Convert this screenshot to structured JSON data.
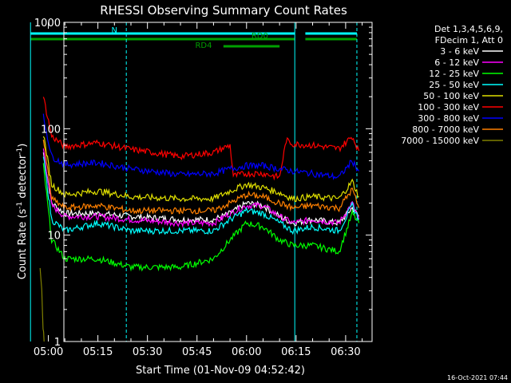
{
  "chart_data": {
    "type": "line",
    "title": "RHESSI Observing Summary Count Rates",
    "xlabel": "Start Time (01-Nov-09 04:52:42)",
    "ylabel_main": "Count Rate (s",
    "ylabel_sup1": "-1",
    "ylabel_mid": " detector",
    "ylabel_sup2": "-1",
    "ylabel_end": ")",
    "yscale": "log",
    "ylim": [
      1,
      1000
    ],
    "xlim_minutes": [
      4.7,
      98
    ],
    "y_ticks": [
      {
        "value": 1,
        "label": "1"
      },
      {
        "value": 10,
        "label": "10"
      },
      {
        "value": 100,
        "label": "100"
      },
      {
        "value": 1000,
        "label": "1000"
      }
    ],
    "x_ticks": [
      {
        "minutes": 0,
        "label": "05:00"
      },
      {
        "minutes": 15,
        "label": "05:15"
      },
      {
        "minutes": 30,
        "label": "05:30"
      },
      {
        "minutes": 45,
        "label": "05:45"
      },
      {
        "minutes": 60,
        "label": "06:00"
      },
      {
        "minutes": 75,
        "label": "06:15"
      },
      {
        "minutes": 90,
        "label": "06:30"
      }
    ],
    "legend_header": [
      "Det 1,3,4,5,6,9,",
      "FDecim 1, Att 0"
    ],
    "legend_placement": "right",
    "timestamp": "16-Oct-2021 07:44",
    "flags": [
      {
        "label": "N",
        "color": "#00ffff",
        "segments": [
          [
            -5.4,
            93.4
          ]
        ],
        "gap": [
          74.6,
          77.8
        ],
        "level": 0
      },
      {
        "label": "RD0",
        "color": "#00a000",
        "segments": [
          [
            -5.4,
            74.6
          ],
          [
            77.8,
            93.4
          ]
        ],
        "level": 1
      },
      {
        "label": "RD4",
        "color": "#00a000",
        "segments": [
          [
            53.0,
            70.0
          ]
        ],
        "level": 2
      }
    ],
    "night_boundaries_minutes": [
      -5.4,
      23.6,
      74.6,
      93.4
    ],
    "series": [
      {
        "name": "3 - 6 keV",
        "color": "#ffffff",
        "values": [
          [
            -1.5,
            60
          ],
          [
            1,
            20
          ],
          [
            5,
            16
          ],
          [
            15,
            16
          ],
          [
            25,
            15
          ],
          [
            40,
            14
          ],
          [
            50,
            14
          ],
          [
            55,
            16
          ],
          [
            60,
            20
          ],
          [
            65,
            19
          ],
          [
            70,
            15
          ],
          [
            74,
            13
          ],
          [
            80,
            14
          ],
          [
            88,
            13
          ],
          [
            92,
            18
          ],
          [
            94,
            15
          ]
        ]
      },
      {
        "name": "6 - 12 keV",
        "color": "#ff00ff",
        "values": [
          [
            -1.5,
            65
          ],
          [
            1,
            19
          ],
          [
            5,
            15
          ],
          [
            15,
            15
          ],
          [
            25,
            14
          ],
          [
            40,
            13
          ],
          [
            50,
            13
          ],
          [
            55,
            16
          ],
          [
            60,
            19
          ],
          [
            65,
            19
          ],
          [
            70,
            15
          ],
          [
            74,
            13
          ],
          [
            80,
            14
          ],
          [
            88,
            13
          ],
          [
            92,
            20
          ],
          [
            94,
            14
          ]
        ]
      },
      {
        "name": "12 - 25 keV",
        "color": "#00ff00",
        "values": [
          [
            -1.5,
            45
          ],
          [
            1,
            9
          ],
          [
            5,
            6
          ],
          [
            15,
            6
          ],
          [
            25,
            5
          ],
          [
            40,
            5
          ],
          [
            50,
            6
          ],
          [
            55,
            9
          ],
          [
            60,
            13
          ],
          [
            65,
            12
          ],
          [
            70,
            9
          ],
          [
            74,
            8
          ],
          [
            80,
            8
          ],
          [
            88,
            7
          ],
          [
            92,
            16
          ],
          [
            94,
            13
          ]
        ]
      },
      {
        "name": "25 - 50 keV",
        "color": "#00ffff",
        "values": [
          [
            -1.5,
            55
          ],
          [
            1,
            14
          ],
          [
            5,
            11
          ],
          [
            15,
            13
          ],
          [
            25,
            11
          ],
          [
            40,
            11
          ],
          [
            50,
            11
          ],
          [
            55,
            14
          ],
          [
            60,
            17
          ],
          [
            65,
            16
          ],
          [
            70,
            13
          ],
          [
            74,
            11
          ],
          [
            80,
            12
          ],
          [
            88,
            11
          ],
          [
            92,
            19
          ],
          [
            94,
            14
          ]
        ]
      },
      {
        "name": "50 - 100 keV",
        "color": "#e0e000",
        "values": [
          [
            -1.5,
            90
          ],
          [
            1,
            30
          ],
          [
            5,
            24
          ],
          [
            15,
            26
          ],
          [
            25,
            23
          ],
          [
            40,
            22
          ],
          [
            50,
            22
          ],
          [
            55,
            26
          ],
          [
            60,
            30
          ],
          [
            65,
            28
          ],
          [
            70,
            25
          ],
          [
            74,
            22
          ],
          [
            80,
            23
          ],
          [
            88,
            22
          ],
          [
            92,
            32
          ],
          [
            94,
            23
          ]
        ]
      },
      {
        "name": "100 - 300 keV",
        "color": "#ff0000",
        "values": [
          [
            -1.5,
            200
          ],
          [
            1,
            85
          ],
          [
            5,
            68
          ],
          [
            15,
            74
          ],
          [
            25,
            64
          ],
          [
            40,
            55
          ],
          [
            50,
            60
          ],
          [
            55,
            70
          ],
          [
            56,
            36
          ],
          [
            60,
            38
          ],
          [
            65,
            38
          ],
          [
            70,
            35
          ],
          [
            72,
            78
          ],
          [
            74,
            72
          ],
          [
            80,
            70
          ],
          [
            88,
            65
          ],
          [
            92,
            85
          ],
          [
            94,
            62
          ]
        ]
      },
      {
        "name": "300 - 800 keV",
        "color": "#0000ff",
        "values": [
          [
            -1.5,
            130
          ],
          [
            1,
            55
          ],
          [
            5,
            46
          ],
          [
            15,
            48
          ],
          [
            25,
            42
          ],
          [
            40,
            37
          ],
          [
            50,
            38
          ],
          [
            55,
            42
          ],
          [
            60,
            45
          ],
          [
            65,
            45
          ],
          [
            70,
            42
          ],
          [
            74,
            40
          ],
          [
            80,
            38
          ],
          [
            88,
            35
          ],
          [
            92,
            50
          ],
          [
            94,
            40
          ]
        ]
      },
      {
        "name": "800 - 7000 keV",
        "color": "#ff8000",
        "values": [
          [
            -1.5,
            80
          ],
          [
            1,
            22
          ],
          [
            5,
            18
          ],
          [
            15,
            19
          ],
          [
            25,
            17
          ],
          [
            40,
            17
          ],
          [
            50,
            17
          ],
          [
            55,
            20
          ],
          [
            60,
            24
          ],
          [
            65,
            23
          ],
          [
            70,
            20
          ],
          [
            74,
            18
          ],
          [
            80,
            19
          ],
          [
            88,
            18
          ],
          [
            92,
            27
          ],
          [
            94,
            18
          ]
        ]
      },
      {
        "name": "7000 - 15000 keV",
        "color": "#808000",
        "values": [
          [
            -2.5,
            4.8
          ],
          [
            -2.0,
            3.0
          ],
          [
            -1.6,
            1.4
          ],
          [
            -1.3,
            1.0
          ]
        ]
      }
    ]
  }
}
